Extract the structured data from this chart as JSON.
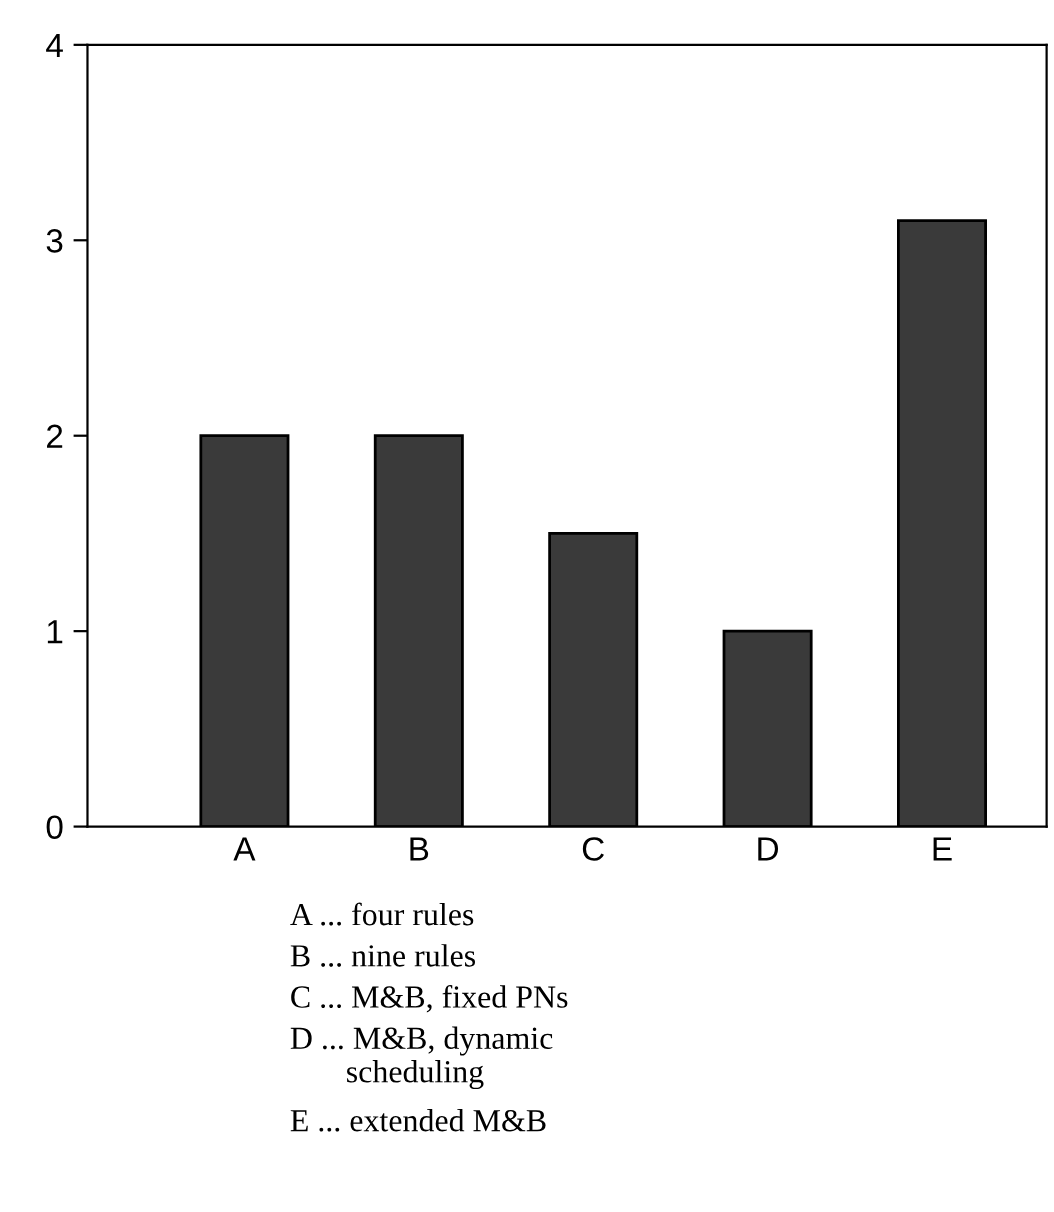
{
  "chart_data": {
    "type": "bar",
    "categories": [
      "A",
      "B",
      "C",
      "D",
      "E"
    ],
    "values": [
      2,
      2,
      1.5,
      1,
      3.1
    ],
    "color": "#3a3a3a",
    "ylim": [
      0,
      4
    ],
    "yticks": [
      0,
      1,
      2,
      3,
      4
    ],
    "grid": false,
    "annotations": [
      "A ... four rules",
      "B ... nine rules",
      "C ... M&B, fixed PNs",
      "D ... M&B, dynamic\n       scheduling",
      "E ... extended M&B"
    ]
  }
}
